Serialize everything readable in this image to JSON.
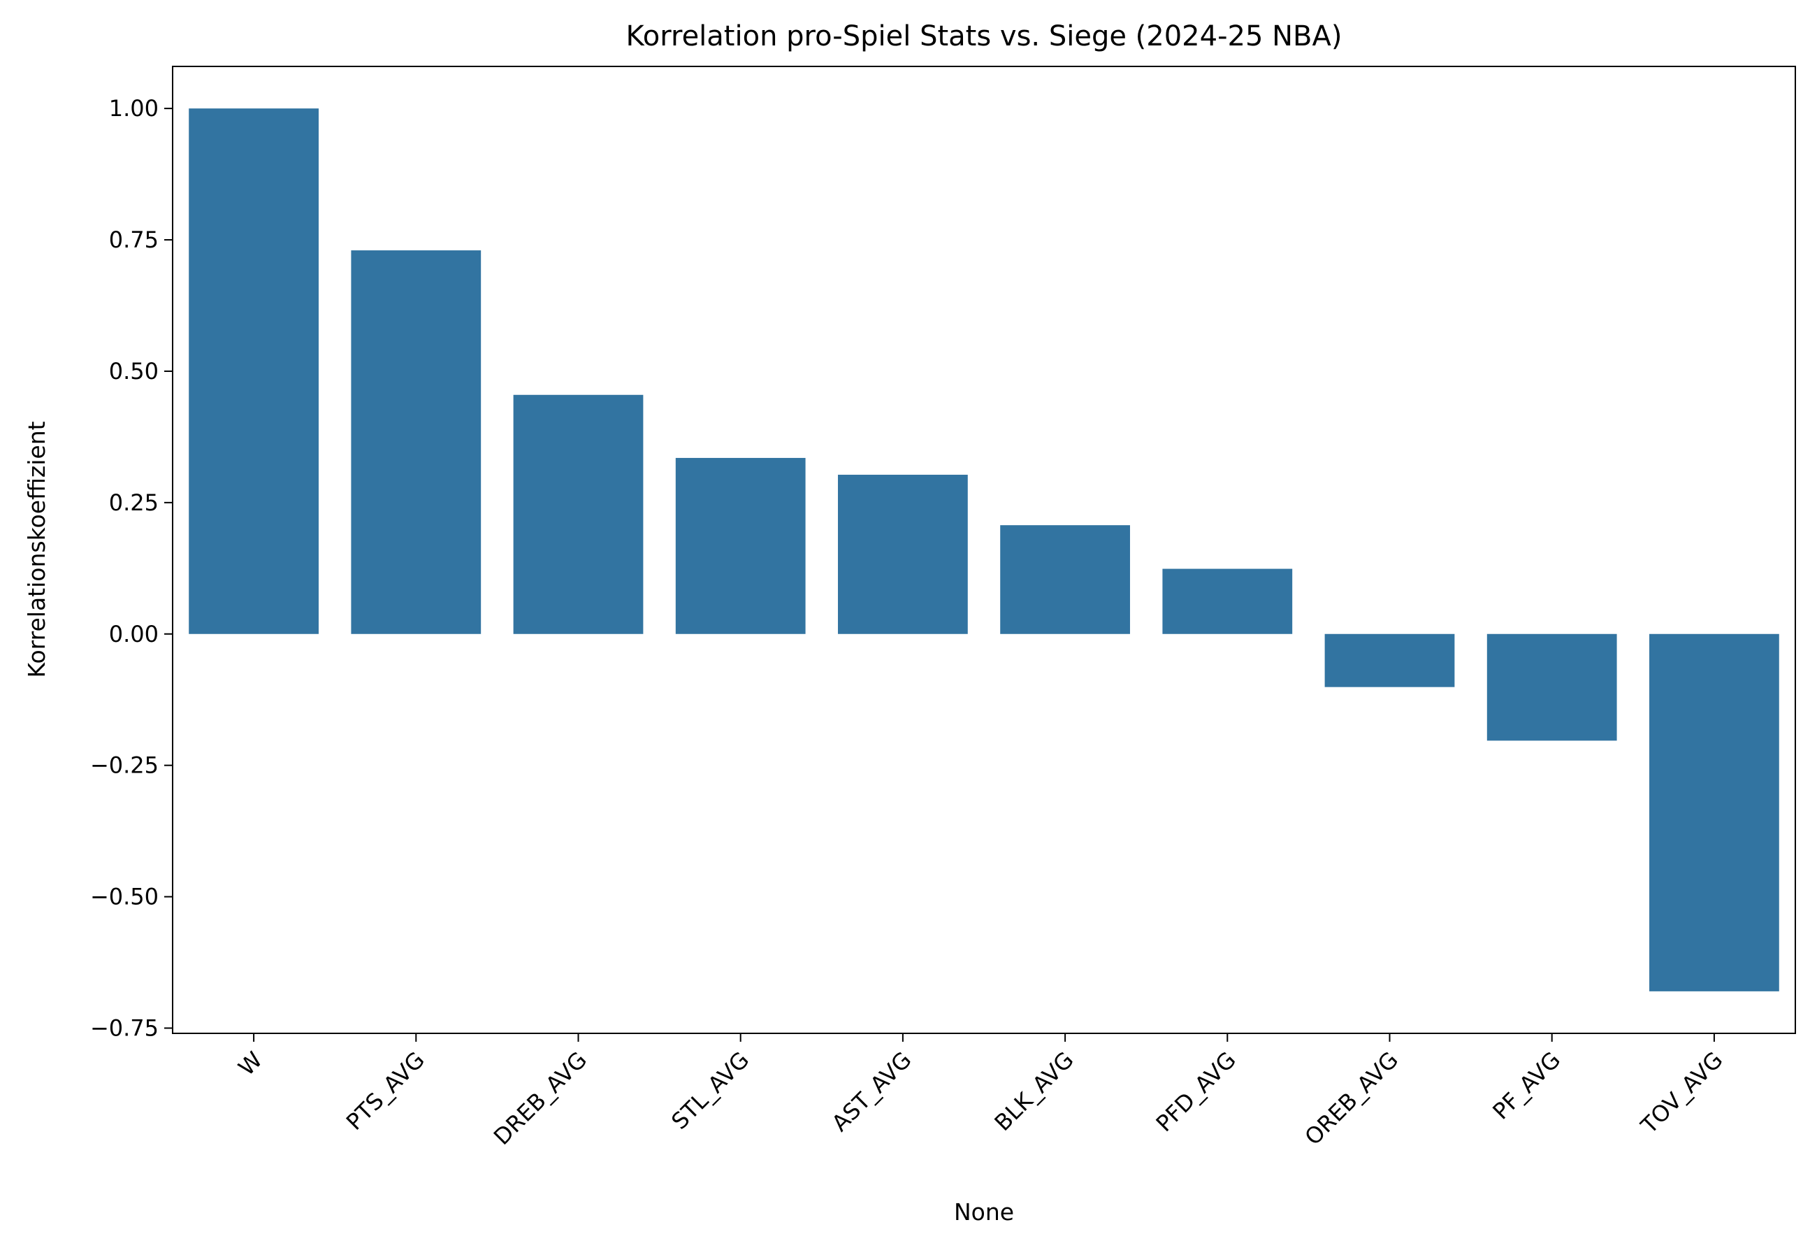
{
  "chart_data": {
    "type": "bar",
    "title": "Korrelation pro-Spiel Stats vs. Siege (2024-25 NBA)",
    "xlabel": "None",
    "ylabel": "Korrelationskoeffizient",
    "categories": [
      "W",
      "PTS_AVG",
      "DREB_AVG",
      "STL_AVG",
      "AST_AVG",
      "BLK_AVG",
      "PFD_AVG",
      "OREB_AVG",
      "PF_AVG",
      "TOV_AVG"
    ],
    "values": [
      1.0,
      0.73,
      0.455,
      0.335,
      0.303,
      0.207,
      0.124,
      -0.101,
      -0.203,
      -0.68
    ],
    "ylim": [
      -0.76,
      1.08
    ],
    "yticks": [
      1.0,
      0.75,
      0.5,
      0.25,
      0.0,
      -0.25,
      -0.5,
      -0.75
    ],
    "ytick_labels": [
      "1.00",
      "0.75",
      "0.50",
      "0.25",
      "0.00",
      "−0.25",
      "−0.50",
      "−0.75"
    ],
    "bar_color": "#3274a1",
    "grid": false,
    "legend": "none"
  }
}
